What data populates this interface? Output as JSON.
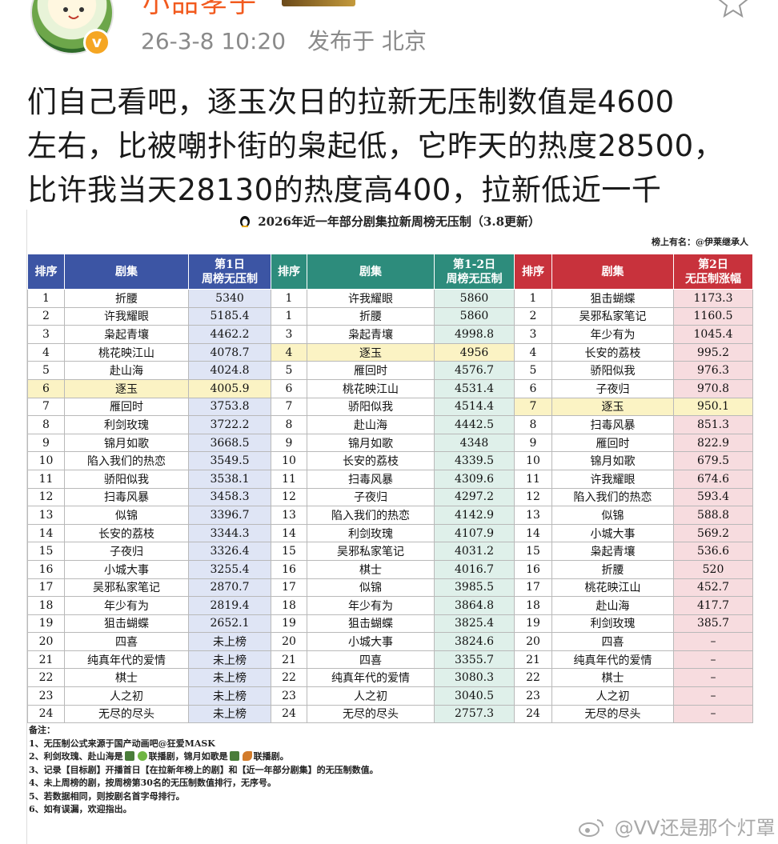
{
  "post": {
    "username": "小品孝子",
    "date": "26-3-8 10:20",
    "location": "发布于 北京",
    "verified_mark": "v",
    "text": "们自己看吧，逐玉次日的拉新无压制数值是4600\n左右，比被嘲扑街的枭起低，它昨天的热度28500，\n比许我当天28130的热度高400，拉新低近一千"
  },
  "table": {
    "title": "2026年近一年部分剧集拉新周榜无压制（3.8更新）",
    "source": "榜上有名：@伊莱继承人",
    "headers": {
      "rank": "排序",
      "drama": "剧集",
      "day1": "第1日\n周榜无压制",
      "day12": "第1-2日\n周榜无压制",
      "day2": "第2日\n无压制涨幅"
    },
    "rows": [
      {
        "r1": "1",
        "d1": "折腰",
        "v1": "5340",
        "r2": "1",
        "d2": "许我耀眼",
        "v2": "5860",
        "r3": "1",
        "d3": "狙击蝴蝶",
        "v3": "1173.3"
      },
      {
        "r1": "2",
        "d1": "许我耀眼",
        "v1": "5185.4",
        "r2": "1",
        "d2": "折腰",
        "v2": "5860",
        "r3": "2",
        "d3": "吴邪私家笔记",
        "v3": "1160.5"
      },
      {
        "r1": "3",
        "d1": "枭起青壤",
        "v1": "4462.2",
        "r2": "3",
        "d2": "枭起青壤",
        "v2": "4998.8",
        "r3": "3",
        "d3": "年少有为",
        "v3": "1045.4"
      },
      {
        "r1": "4",
        "d1": "桃花映江山",
        "v1": "4078.7",
        "r2": "4",
        "d2": "逐玉",
        "v2": "4956",
        "r3": "4",
        "d3": "长安的荔枝",
        "v3": "995.2"
      },
      {
        "r1": "5",
        "d1": "赴山海",
        "v1": "4024.8",
        "r2": "5",
        "d2": "雁回时",
        "v2": "4576.7",
        "r3": "5",
        "d3": "骄阳似我",
        "v3": "976.3"
      },
      {
        "r1": "6",
        "d1": "逐玉",
        "v1": "4005.9",
        "r2": "6",
        "d2": "桃花映江山",
        "v2": "4531.4",
        "r3": "6",
        "d3": "子夜归",
        "v3": "970.8"
      },
      {
        "r1": "7",
        "d1": "雁回时",
        "v1": "3753.8",
        "r2": "7",
        "d2": "骄阳似我",
        "v2": "4514.4",
        "r3": "7",
        "d3": "逐玉",
        "v3": "950.1"
      },
      {
        "r1": "8",
        "d1": "利剑玫瑰",
        "v1": "3722.2",
        "r2": "8",
        "d2": "赴山海",
        "v2": "4442.5",
        "r3": "8",
        "d3": "扫毒风暴",
        "v3": "851.3"
      },
      {
        "r1": "9",
        "d1": "锦月如歌",
        "v1": "3668.5",
        "r2": "9",
        "d2": "锦月如歌",
        "v2": "4348",
        "r3": "9",
        "d3": "雁回时",
        "v3": "822.9"
      },
      {
        "r1": "10",
        "d1": "陷入我们的热恋",
        "v1": "3549.5",
        "r2": "10",
        "d2": "长安的荔枝",
        "v2": "4339.5",
        "r3": "10",
        "d3": "锦月如歌",
        "v3": "679.5"
      },
      {
        "r1": "11",
        "d1": "骄阳似我",
        "v1": "3538.1",
        "r2": "11",
        "d2": "扫毒风暴",
        "v2": "4309.6",
        "r3": "11",
        "d3": "许我耀眼",
        "v3": "674.6"
      },
      {
        "r1": "12",
        "d1": "扫毒风暴",
        "v1": "3458.3",
        "r2": "12",
        "d2": "子夜归",
        "v2": "4297.2",
        "r3": "12",
        "d3": "陷入我们的热恋",
        "v3": "593.4"
      },
      {
        "r1": "13",
        "d1": "似锦",
        "v1": "3396.7",
        "r2": "13",
        "d2": "陷入我们的热恋",
        "v2": "4142.9",
        "r3": "13",
        "d3": "似锦",
        "v3": "588.8"
      },
      {
        "r1": "14",
        "d1": "长安的荔枝",
        "v1": "3344.3",
        "r2": "14",
        "d2": "利剑玫瑰",
        "v2": "4107.9",
        "r3": "14",
        "d3": "小城大事",
        "v3": "569.2"
      },
      {
        "r1": "15",
        "d1": "子夜归",
        "v1": "3326.4",
        "r2": "15",
        "d2": "吴邪私家笔记",
        "v2": "4031.2",
        "r3": "15",
        "d3": "枭起青壤",
        "v3": "536.6"
      },
      {
        "r1": "16",
        "d1": "小城大事",
        "v1": "3255.4",
        "r2": "16",
        "d2": "棋士",
        "v2": "4016.7",
        "r3": "16",
        "d3": "折腰",
        "v3": "520"
      },
      {
        "r1": "17",
        "d1": "吴邪私家笔记",
        "v1": "2870.7",
        "r2": "17",
        "d2": "似锦",
        "v2": "3985.5",
        "r3": "17",
        "d3": "桃花映江山",
        "v3": "452.7"
      },
      {
        "r1": "18",
        "d1": "年少有为",
        "v1": "2819.4",
        "r2": "18",
        "d2": "年少有为",
        "v2": "3864.8",
        "r3": "18",
        "d3": "赴山海",
        "v3": "417.7"
      },
      {
        "r1": "19",
        "d1": "狙击蝴蝶",
        "v1": "2652.1",
        "r2": "19",
        "d2": "狙击蝴蝶",
        "v2": "3825.4",
        "r3": "19",
        "d3": "利剑玫瑰",
        "v3": "385.7"
      },
      {
        "r1": "20",
        "d1": "四喜",
        "v1": "未上榜",
        "r2": "20",
        "d2": "小城大事",
        "v2": "3824.6",
        "r3": "20",
        "d3": "四喜",
        "v3": "–"
      },
      {
        "r1": "21",
        "d1": "纯真年代的爱情",
        "v1": "未上榜",
        "r2": "21",
        "d2": "四喜",
        "v2": "3355.7",
        "r3": "21",
        "d3": "纯真年代的爱情",
        "v3": "–"
      },
      {
        "r1": "22",
        "d1": "棋士",
        "v1": "未上榜",
        "r2": "22",
        "d2": "纯真年代的爱情",
        "v2": "3080.3",
        "r3": "22",
        "d3": "棋士",
        "v3": "–"
      },
      {
        "r1": "23",
        "d1": "人之初",
        "v1": "未上榜",
        "r2": "23",
        "d2": "人之初",
        "v2": "3040.5",
        "r3": "23",
        "d3": "人之初",
        "v3": "–"
      },
      {
        "r1": "24",
        "d1": "无尽的尽头",
        "v1": "未上榜",
        "r2": "24",
        "d2": "无尽的尽头",
        "v2": "2757.3",
        "r3": "24",
        "d3": "无尽的尽头",
        "v3": "–"
      }
    ],
    "highlight_drama": "逐玉",
    "colors": {
      "group1_header": "#3c55a4",
      "group2_header": "#2d8c7c",
      "group3_header": "#c8323c",
      "highlight": "#fbf3c4"
    },
    "notes": {
      "title": "备注：",
      "line1": "1、无压制公式来源于国产动画吧@狂爱MASK",
      "line2_a": "2、利剑玫瑰、赴山海是",
      "line2_b": "联播剧，锦月如歌是",
      "line2_c": "联播剧。",
      "line3": "3、记录【目标剧】开播首日【在拉新年榜上的剧】和【近一年部分剧集】的无压制数值。",
      "line4": "4、未上周榜的剧，按周榜第30名的无压制数值排行，无序号。",
      "line5": "5、若数据相同，则按剧名首字母排行。",
      "line6": "6、如有误漏，欢迎指出。"
    }
  },
  "watermark": {
    "handle": "@VV还是那个灯罩"
  }
}
